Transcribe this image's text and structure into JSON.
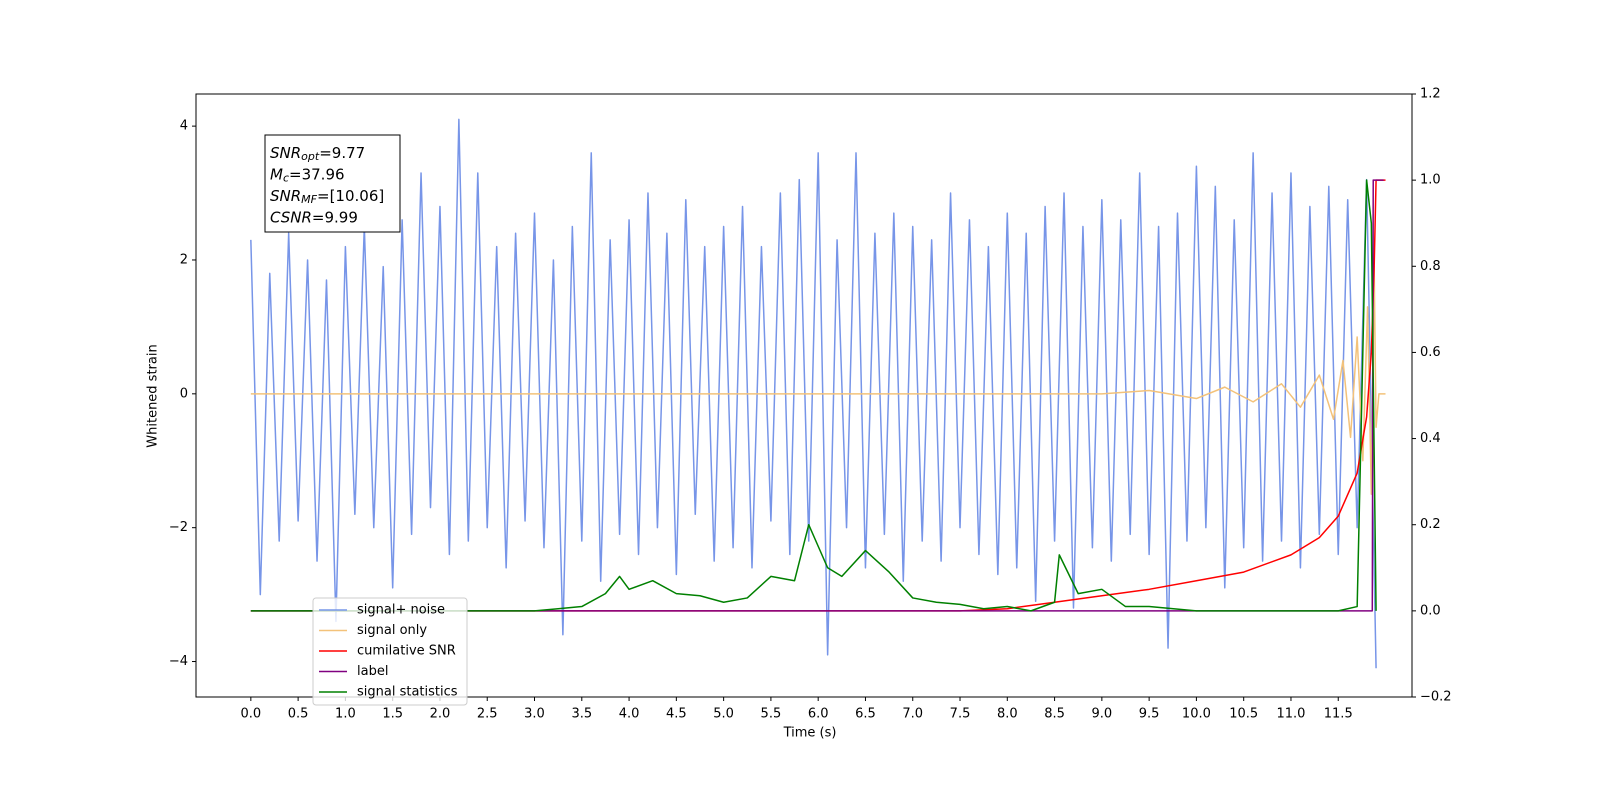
{
  "chart_data": {
    "type": "line",
    "xlabel": "Time (s)",
    "ylabel": "Whitened strain",
    "xlim": [
      -0.58,
      12.28
    ],
    "ylim": [
      -4.53,
      4.48
    ],
    "y2lim": [
      -0.2,
      1.2
    ],
    "xticks": [
      {
        "value": 0,
        "label": "0.0"
      },
      0.5,
      {
        "value": 1,
        "label": "1.0"
      },
      1.5,
      {
        "value": 2,
        "label": "2.0"
      },
      2.5,
      {
        "value": 3,
        "label": "3.0"
      },
      3.5,
      {
        "value": 4,
        "label": "4.0"
      },
      4.5,
      {
        "value": 5,
        "label": "5.0"
      },
      5.5,
      {
        "value": 6,
        "label": "6.0"
      },
      6.5,
      {
        "value": 7,
        "label": "7.0"
      },
      7.5,
      {
        "value": 8,
        "label": "8.0"
      },
      8.5,
      {
        "value": 9,
        "label": "9.0"
      },
      9.5,
      {
        "value": 10,
        "label": "10.0"
      },
      10.5,
      {
        "value": 11,
        "label": "11.0"
      },
      11.5
    ],
    "yticks": [
      {
        "value": -4,
        "label": "−4"
      },
      {
        "value": -2,
        "label": "−2"
      },
      0,
      2,
      4
    ],
    "y2ticks": [
      {
        "value": -0.2,
        "label": "−0.2"
      },
      {
        "value": 0,
        "label": "0.0"
      },
      0.2,
      0.4,
      0.6,
      0.8,
      {
        "value": 1,
        "label": "1.0"
      },
      1.2
    ],
    "legend": "lower left",
    "annotation": [
      {
        "main": "SNR",
        "sub": "opt",
        "rest": "=9.77"
      },
      {
        "main": "M",
        "sub": "c",
        "rest": "=37.96"
      },
      {
        "main": "SNR",
        "sub": "MF",
        "rest": "=[10.06]"
      },
      {
        "main": "CSNR",
        "rest": "=9.99"
      }
    ],
    "series": [
      {
        "name": "signal+ noise",
        "color": "#7795e8",
        "x": [
          0,
          0.1,
          0.2,
          0.3,
          0.4,
          0.5,
          0.6,
          0.7,
          0.8,
          0.9,
          1.0,
          1.1,
          1.2,
          1.3,
          1.4,
          1.5,
          1.6,
          1.7,
          1.8,
          1.9,
          2.0,
          2.1,
          2.2,
          2.3,
          2.4,
          2.5,
          2.6,
          2.7,
          2.8,
          2.9,
          3.0,
          3.1,
          3.2,
          3.3,
          3.4,
          3.5,
          3.6,
          3.7,
          3.8,
          3.9,
          4.0,
          4.1,
          4.2,
          4.3,
          4.4,
          4.5,
          4.6,
          4.7,
          4.8,
          4.9,
          5.0,
          5.1,
          5.2,
          5.3,
          5.4,
          5.5,
          5.6,
          5.7,
          5.8,
          5.9,
          6.0,
          6.1,
          6.2,
          6.3,
          6.4,
          6.5,
          6.6,
          6.7,
          6.8,
          6.9,
          7.0,
          7.1,
          7.2,
          7.3,
          7.4,
          7.5,
          7.6,
          7.7,
          7.8,
          7.9,
          8.0,
          8.1,
          8.2,
          8.3,
          8.4,
          8.5,
          8.6,
          8.7,
          8.8,
          8.9,
          9.0,
          9.1,
          9.2,
          9.3,
          9.4,
          9.5,
          9.6,
          9.7,
          9.8,
          9.9,
          10.0,
          10.1,
          10.2,
          10.3,
          10.4,
          10.5,
          10.6,
          10.7,
          10.8,
          10.9,
          11.0,
          11.1,
          11.2,
          11.3,
          11.4,
          11.5,
          11.6,
          11.7,
          11.8,
          11.9
        ],
        "values": [
          2.3,
          -3.0,
          1.8,
          -2.2,
          2.4,
          -1.9,
          2.0,
          -2.5,
          1.7,
          -3.4,
          2.2,
          -1.8,
          2.5,
          -2.0,
          1.9,
          -2.9,
          2.6,
          -2.1,
          3.3,
          -1.7,
          2.8,
          -2.4,
          4.1,
          -2.2,
          3.3,
          -2.0,
          2.2,
          -2.6,
          2.4,
          -1.9,
          2.7,
          -2.3,
          2.0,
          -3.6,
          2.5,
          -2.2,
          3.6,
          -2.8,
          2.3,
          -2.1,
          2.6,
          -2.4,
          3.0,
          -2.0,
          2.4,
          -2.7,
          2.9,
          -1.8,
          2.2,
          -2.5,
          2.5,
          -2.3,
          2.8,
          -2.6,
          2.2,
          -1.9,
          3.0,
          -2.4,
          3.2,
          -2.2,
          3.6,
          -3.9,
          2.3,
          -2.0,
          3.6,
          -2.6,
          2.4,
          -2.1,
          2.7,
          -2.8,
          2.5,
          -2.2,
          2.3,
          -2.5,
          3.0,
          -2.0,
          2.6,
          -2.4,
          2.2,
          -2.7,
          2.7,
          -2.6,
          2.4,
          -3.1,
          2.8,
          -2.2,
          3.0,
          -3.2,
          2.5,
          -2.3,
          2.9,
          -2.5,
          2.6,
          -2.1,
          3.3,
          -2.4,
          2.5,
          -3.8,
          2.7,
          -2.2,
          3.4,
          -2.0,
          3.1,
          -2.9,
          2.6,
          -2.3,
          3.6,
          -2.5,
          3.0,
          -2.2,
          3.3,
          -2.6,
          2.8,
          -2.1,
          3.1,
          -2.4,
          2.9,
          -2.0,
          3.2,
          -4.1
        ]
      },
      {
        "name": "signal only",
        "color": "#f3c27a",
        "x": [
          0,
          9.0,
          9.5,
          10.0,
          10.3,
          10.6,
          10.9,
          11.1,
          11.3,
          11.45,
          11.55,
          11.63,
          11.7,
          11.76,
          11.81,
          11.85,
          11.88,
          11.9,
          11.93,
          12.0
        ],
        "values": [
          0,
          0,
          0.05,
          -0.07,
          0.1,
          -0.12,
          0.15,
          -0.2,
          0.28,
          -0.38,
          0.5,
          -0.65,
          0.85,
          -1.0,
          1.3,
          -1.5,
          1.9,
          -0.5,
          0,
          0
        ]
      },
      {
        "name": "cumilative SNR",
        "color": "#ff0000",
        "axis": "y2",
        "x": [
          0,
          7.5,
          8.0,
          8.5,
          9.0,
          9.5,
          10.0,
          10.5,
          11.0,
          11.3,
          11.5,
          11.7,
          11.8,
          11.85,
          11.88,
          11.9,
          12.0
        ],
        "values": [
          0,
          0,
          0.005,
          0.02,
          0.035,
          0.05,
          0.07,
          0.09,
          0.13,
          0.17,
          0.22,
          0.32,
          0.45,
          0.6,
          0.8,
          1.0,
          1.0
        ]
      },
      {
        "name": "label",
        "color": "#800080",
        "axis": "y2",
        "x": [
          0,
          11.86,
          11.87,
          11.98
        ],
        "values": [
          0,
          0,
          1,
          1
        ]
      },
      {
        "name": "signal statistics",
        "color": "#008000",
        "axis": "y2",
        "x": [
          0,
          3.0,
          3.25,
          3.5,
          3.75,
          3.9,
          4.0,
          4.25,
          4.5,
          4.75,
          5.0,
          5.25,
          5.5,
          5.75,
          5.9,
          6.0,
          6.1,
          6.25,
          6.5,
          6.6,
          6.75,
          7.0,
          7.25,
          7.5,
          7.75,
          8.0,
          8.25,
          8.5,
          8.55,
          8.75,
          9.0,
          9.25,
          9.5,
          10.0,
          11.5,
          11.7,
          11.75,
          11.8,
          11.85,
          11.9
        ],
        "values": [
          0,
          0,
          0.005,
          0.01,
          0.04,
          0.08,
          0.05,
          0.07,
          0.04,
          0.035,
          0.02,
          0.03,
          0.08,
          0.07,
          0.2,
          0.15,
          0.1,
          0.08,
          0.14,
          0.12,
          0.09,
          0.03,
          0.02,
          0.015,
          0.005,
          0.01,
          0.0,
          0.02,
          0.13,
          0.04,
          0.05,
          0.01,
          0.01,
          0,
          0,
          0.01,
          0.5,
          1.0,
          0.9,
          0.0
        ]
      }
    ]
  }
}
